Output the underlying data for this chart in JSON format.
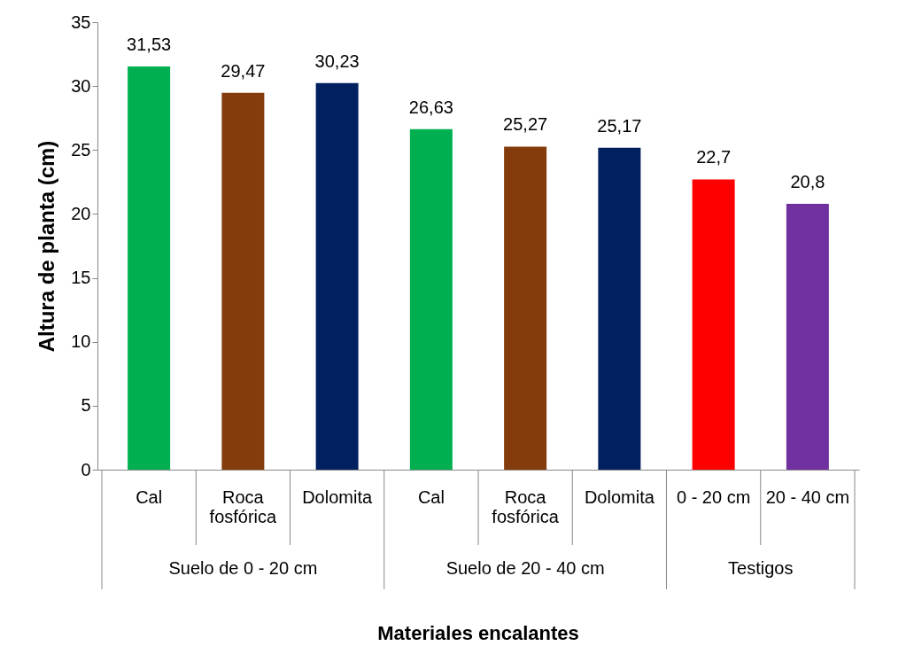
{
  "chart_data": {
    "type": "bar",
    "ylabel": "Altura de planta (cm)",
    "xlabel": "Materiales encalantes",
    "categories": [
      "Cal",
      "Roca fosfórica",
      "Dolomita",
      "Cal",
      "Roca fosfórica",
      "Dolomita",
      "0 - 20 cm",
      "20 - 40 cm"
    ],
    "values": [
      31.53,
      29.47,
      30.23,
      26.63,
      25.27,
      25.17,
      22.7,
      20.8
    ],
    "value_labels": [
      "31,53",
      "29,47",
      "30,23",
      "26,63",
      "25,27",
      "25,17",
      "22,7",
      "20,8"
    ],
    "colors": [
      "#00b050",
      "#843c0c",
      "#002060",
      "#00b050",
      "#843c0c",
      "#002060",
      "#ff0000",
      "#7030a0"
    ],
    "annotations": [
      "Suelo de 0 - 20 cm",
      "Suelo de 20 - 40 cm",
      "Testigos"
    ],
    "ylim": [
      0,
      35
    ],
    "yticks": [
      0,
      5,
      10,
      15,
      20,
      25,
      30,
      35
    ],
    "grid": false
  }
}
